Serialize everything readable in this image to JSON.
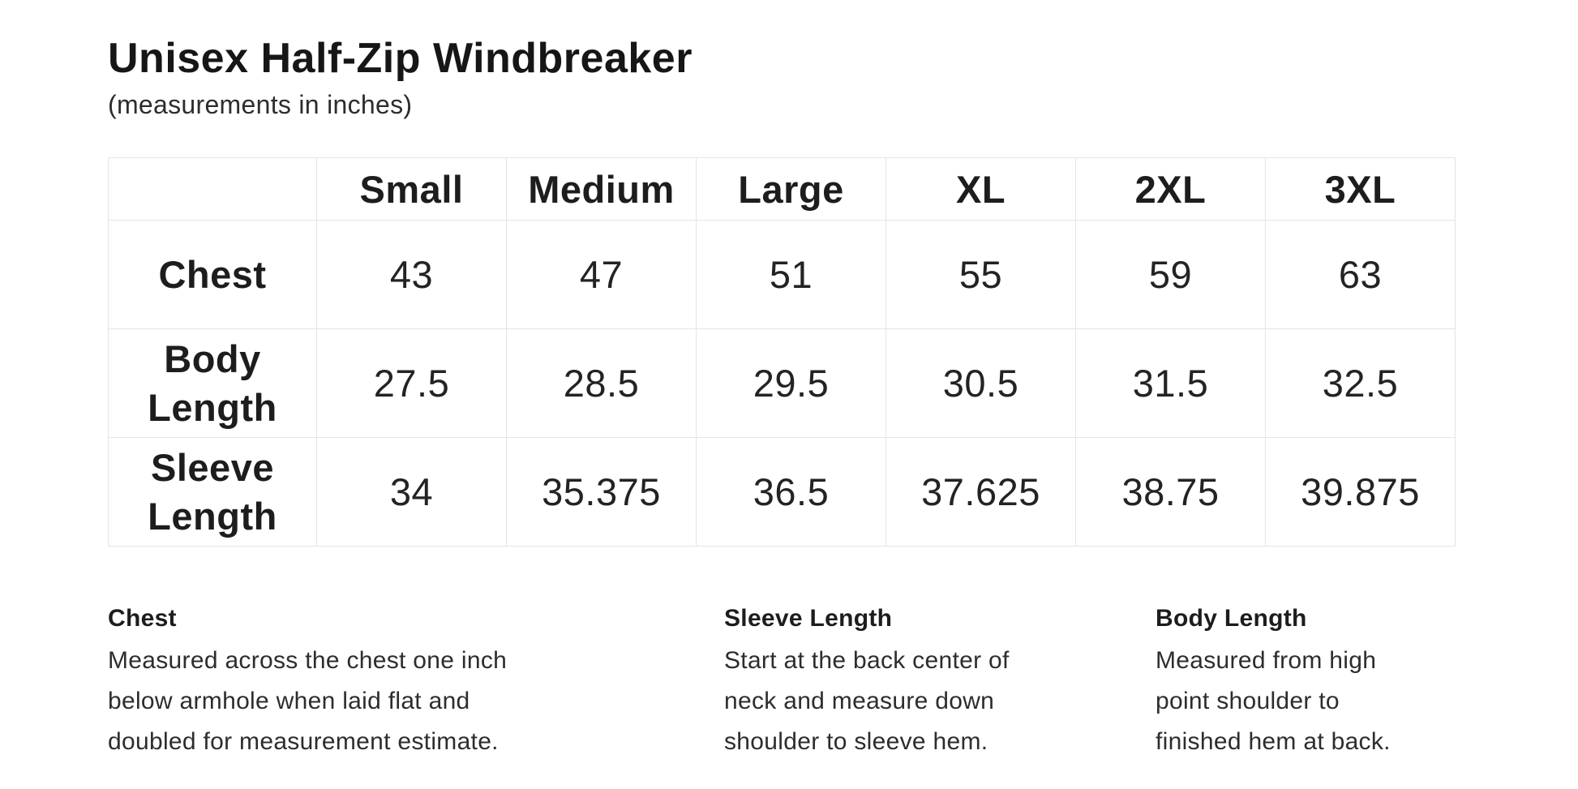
{
  "header": {
    "title": "Unisex Half-Zip Windbreaker",
    "subtitle": "(measurements in inches)"
  },
  "chart_data": {
    "type": "table",
    "title": "Unisex Half-Zip Windbreaker",
    "units": "inches",
    "columns": [
      "Small",
      "Medium",
      "Large",
      "XL",
      "2XL",
      "3XL"
    ],
    "rows": [
      {
        "label": "Chest",
        "values": [
          43,
          47,
          51,
          55,
          59,
          63
        ]
      },
      {
        "label": "Body Length",
        "values": [
          27.5,
          28.5,
          29.5,
          30.5,
          31.5,
          32.5
        ]
      },
      {
        "label": "Sleeve Length",
        "values": [
          34,
          35.375,
          36.5,
          37.625,
          38.75,
          39.875
        ]
      }
    ]
  },
  "notes": [
    {
      "heading": "Chest",
      "lines": [
        "Measured across the chest one inch",
        "below armhole when laid flat and",
        "doubled for measurement estimate."
      ]
    },
    {
      "heading": "Sleeve Length",
      "lines": [
        "Start at the back center of",
        "neck and measure down",
        "shoulder to sleeve hem."
      ]
    },
    {
      "heading": "Body Length",
      "lines": [
        "Measured from high",
        "point shoulder to",
        "finished hem at back."
      ]
    }
  ],
  "colors": {
    "background": "#ffffff",
    "text": "#1f1f1f",
    "table_border": "#e5e5e5"
  }
}
